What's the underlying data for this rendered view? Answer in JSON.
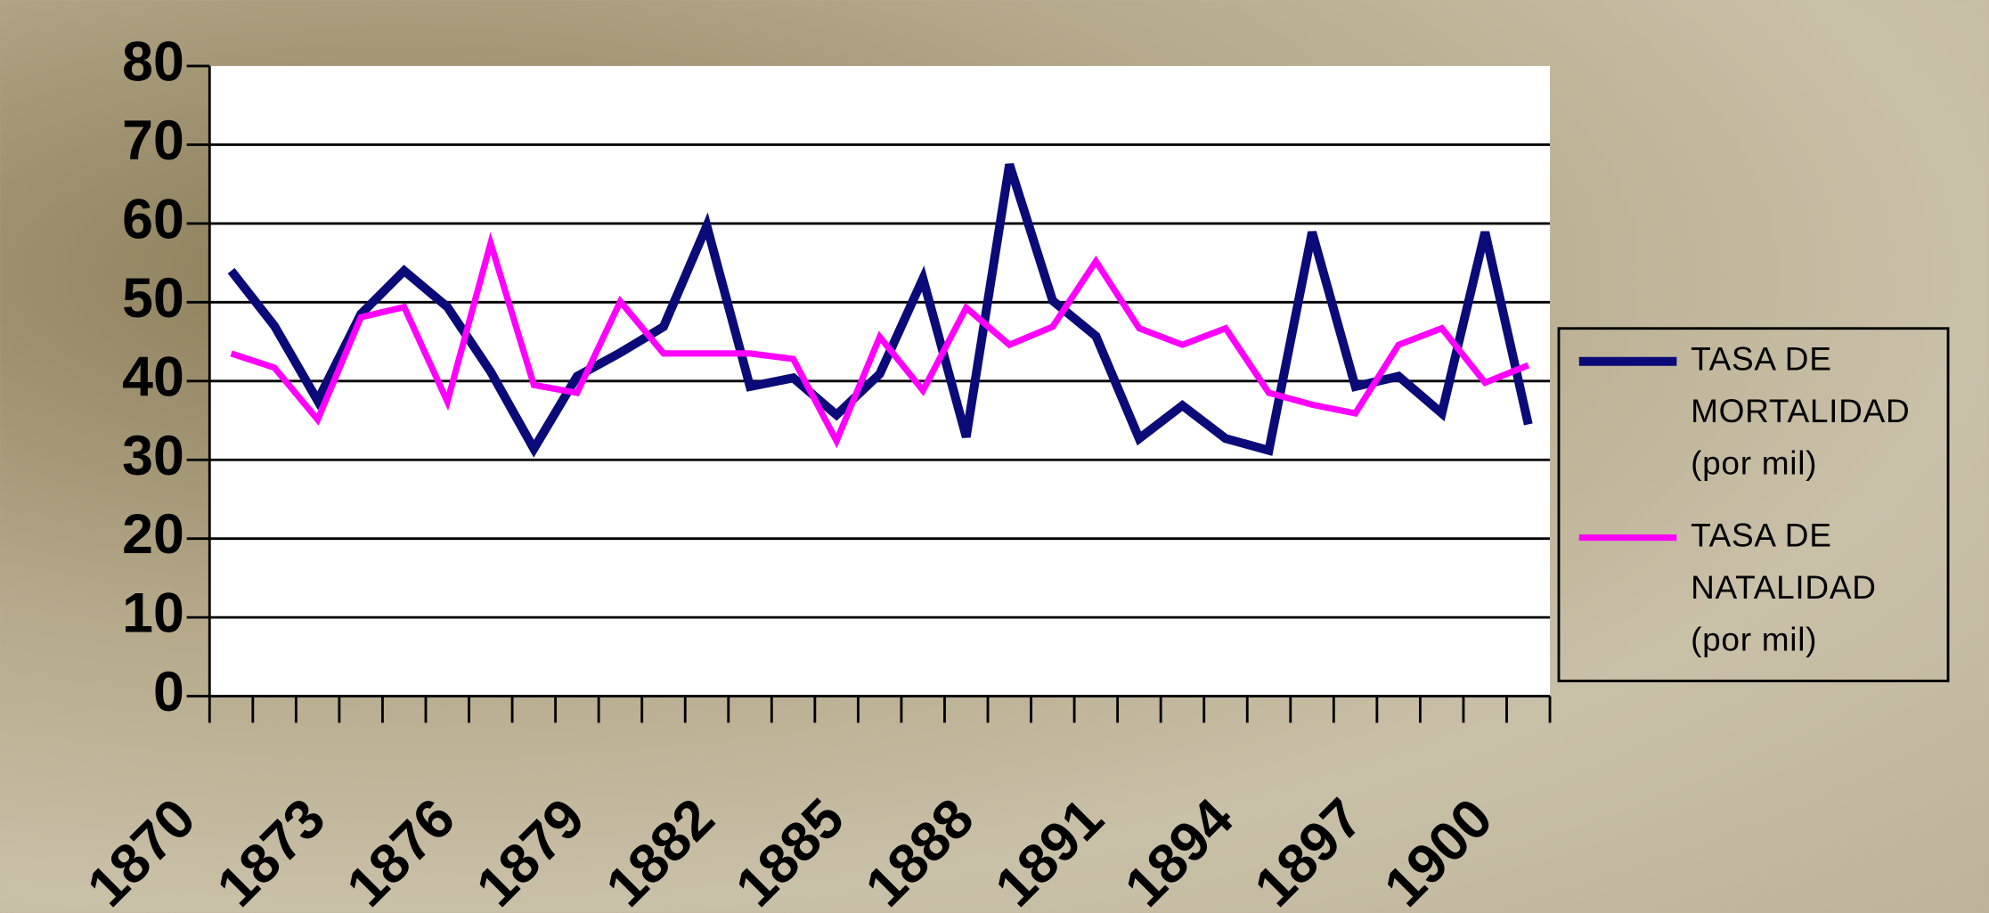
{
  "chart_data": {
    "type": "line",
    "categories": [
      "1870",
      null,
      null,
      "1873",
      null,
      null,
      "1876",
      null,
      null,
      "1879",
      null,
      null,
      "1882",
      null,
      null,
      "1885",
      null,
      null,
      "1888",
      null,
      null,
      "1891",
      null,
      null,
      "1894",
      null,
      null,
      "1897",
      null,
      null,
      "1900"
    ],
    "series": [
      {
        "name": "TASA DE MORTALIDAD (por mil)",
        "color": "#0a0a78",
        "values": [
          54,
          47,
          37.5,
          48.5,
          54,
          49.4,
          41.2,
          31.4,
          40.6,
          43.6,
          46.9,
          59.7,
          39.3,
          40.4,
          35.7,
          40.9,
          53,
          32.9,
          67.5,
          50.2,
          45.7,
          32.7,
          36.9,
          32.7,
          31.2,
          58.9,
          39.3,
          40.6,
          35.9,
          58.9,
          34.5
        ]
      },
      {
        "name": "TASA DE NATALIDAD (por mil)",
        "color": "#ff00ff",
        "values": [
          43.5,
          41.7,
          35.1,
          48.1,
          49.4,
          37.4,
          57.5,
          39.5,
          38.5,
          50.1,
          43.5,
          43.5,
          43.5,
          42.8,
          32.4,
          45.6,
          38.8,
          49.3,
          44.6,
          46.9,
          55.2,
          46.7,
          44.6,
          46.7,
          38.5,
          37,
          35.9,
          44.6,
          46.7,
          39.8,
          42
        ]
      }
    ],
    "ylim": [
      0,
      80
    ],
    "yticks": [
      0,
      10,
      20,
      30,
      40,
      50,
      60,
      70,
      80
    ],
    "grid": true,
    "legend": "right"
  }
}
